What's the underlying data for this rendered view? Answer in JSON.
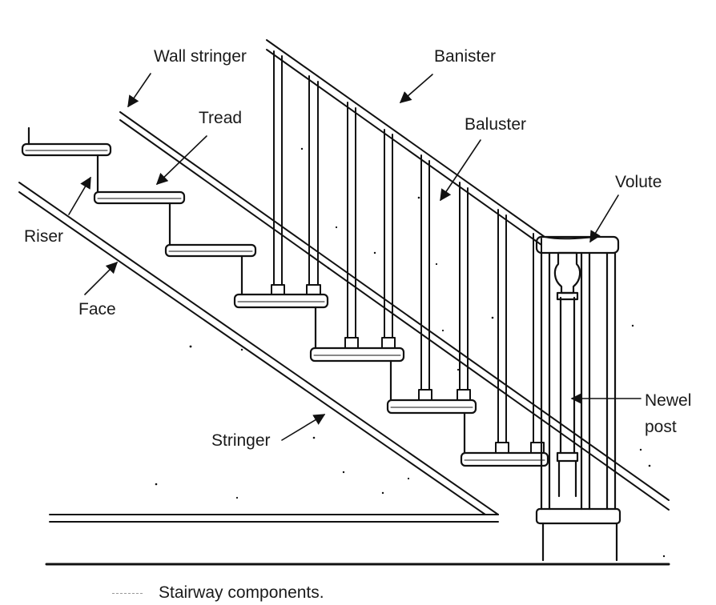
{
  "diagram": {
    "labels": {
      "wall_stringer": "Wall stringer",
      "banister": "Banister",
      "tread": "Tread",
      "baluster": "Baluster",
      "volute": "Volute",
      "riser": "Riser",
      "face": "Face",
      "newel_post_line1": "Newel",
      "newel_post_line2": "post",
      "stringer": "Stringer"
    },
    "caption": "Stairway components."
  }
}
